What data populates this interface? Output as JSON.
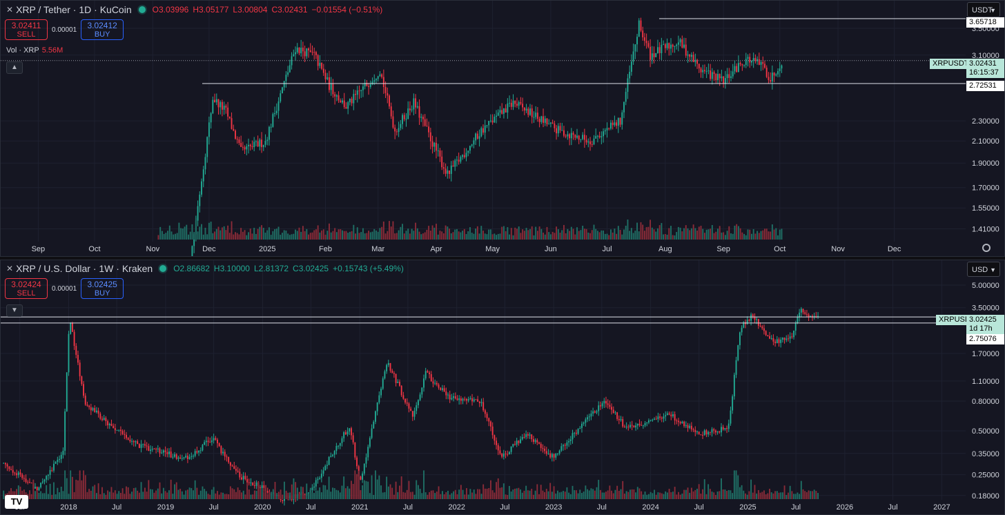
{
  "colors": {
    "up": "#22ab94",
    "down": "#f23645",
    "vol_up": "#1f6f65",
    "vol_down": "#8a2b38",
    "price_tag_bg": "#b8e6d9",
    "axis_text": "#d1d4dc",
    "grid": "#1e2130"
  },
  "top": {
    "symbol": "XRP / Tether · 1D · KuCoin",
    "ohlc": {
      "o": "O3.03996",
      "h": "H3.05177",
      "l": "L3.00804",
      "c": "C3.02431",
      "chg": "−0.01554 (−0.51%)"
    },
    "sell": {
      "price": "3.02411",
      "label": "SELL"
    },
    "spread": "0.00001",
    "buy": {
      "price": "3.02412",
      "label": "BUY"
    },
    "volume": {
      "label": "Vol · XRP",
      "value": "5.56M"
    },
    "collapse_icon": "chevron-up-icon",
    "currency": "USDT",
    "settings_icon": "gear-icon",
    "tags": {
      "high": "3.65718",
      "ticker": "XRPUSDT",
      "price": "3.02431",
      "countdown": "16:15:37",
      "support": "2.72531"
    }
  },
  "bottom": {
    "symbol": "XRP / U.S. Dollar · 1W · Kraken",
    "ohlc": {
      "o": "O2.86682",
      "h": "H3.10000",
      "l": "L2.81372",
      "c": "C3.02425",
      "chg": "+0.15743 (+5.49%)"
    },
    "sell": {
      "price": "3.02424",
      "label": "SELL"
    },
    "spread": "0.00001",
    "buy": {
      "price": "3.02425",
      "label": "BUY"
    },
    "collapse_icon": "chevron-down-icon",
    "currency": "USD",
    "logo": "TV",
    "tags": {
      "ticker": "XRPUSD",
      "price": "3.02425",
      "countdown": "1d 17h",
      "support": "2.75076"
    }
  },
  "chart_data": [
    {
      "type": "candlestick",
      "title": "XRP / Tether · 1D · KuCoin",
      "y_scale": "log",
      "ylim": [
        1.36,
        3.75
      ],
      "y_ticks": [
        "3.50000",
        "3.10000",
        "2.30000",
        "2.10000",
        "1.90000",
        "1.70000",
        "1.55000",
        "1.41000"
      ],
      "y_tick_values": [
        3.5,
        3.1,
        2.3,
        2.1,
        1.9,
        1.7,
        1.55,
        1.41
      ],
      "x_ticks": [
        "Sep",
        "Oct",
        "Nov",
        "Dec",
        "2025",
        "Feb",
        "Mar",
        "Apr",
        "May",
        "Jun",
        "Jul",
        "Aug",
        "Sep",
        "Oct",
        "Nov",
        "Dec"
      ],
      "x_tick_dates": [
        "2024-09-01",
        "2024-10-01",
        "2024-11-01",
        "2024-12-01",
        "2025-01-01",
        "2025-02-01",
        "2025-03-01",
        "2025-04-01",
        "2025-05-01",
        "2025-06-01",
        "2025-07-01",
        "2025-08-01",
        "2025-09-01",
        "2025-10-01",
        "2025-11-01",
        "2025-12-01"
      ],
      "xlim": [
        "2024-08-12",
        "2026-01-08"
      ],
      "hlines": [
        3.65718,
        2.72531,
        3.02431
      ],
      "anchors": {
        "dates": [
          "2024-11-04",
          "2024-11-12",
          "2024-11-22",
          "2024-12-03",
          "2024-12-10",
          "2024-12-18",
          "2024-12-31",
          "2025-01-16",
          "2025-01-26",
          "2025-02-03",
          "2025-02-12",
          "2025-03-02",
          "2025-03-10",
          "2025-03-20",
          "2025-04-07",
          "2025-04-25",
          "2025-05-12",
          "2025-06-05",
          "2025-06-22",
          "2025-07-08",
          "2025-07-18",
          "2025-07-24",
          "2025-08-08",
          "2025-08-20",
          "2025-09-01",
          "2025-09-13",
          "2025-09-22",
          "2025-09-26",
          "2025-10-02"
        ],
        "values": [
          0.55,
          0.8,
          1.3,
          2.55,
          2.4,
          2.0,
          2.1,
          3.2,
          3.1,
          2.7,
          2.45,
          2.9,
          2.2,
          2.5,
          1.8,
          2.2,
          2.5,
          2.2,
          2.1,
          2.3,
          3.55,
          3.1,
          3.3,
          2.9,
          2.75,
          3.05,
          2.95,
          2.78,
          3.02
        ]
      },
      "volume_note": "volume bars along bottom of pane"
    },
    {
      "type": "candlestick",
      "title": "XRP / U.S. Dollar · 1W · Kraken",
      "y_scale": "log",
      "ylim": [
        0.17,
        6.5
      ],
      "y_ticks": [
        "5.00000",
        "3.50000",
        "1.70000",
        "1.10000",
        "0.80000",
        "0.50000",
        "0.35000",
        "0.25000",
        "0.18000"
      ],
      "y_tick_values": [
        5.0,
        3.5,
        1.7,
        1.1,
        0.8,
        0.5,
        0.35,
        0.25,
        0.18
      ],
      "x_ticks": [
        "Jul",
        "2018",
        "Jul",
        "2019",
        "Jul",
        "2020",
        "Jul",
        "2021",
        "Jul",
        "2022",
        "Jul",
        "2023",
        "Jul",
        "2024",
        "Jul",
        "2025",
        "Jul",
        "2026",
        "Jul",
        "2027"
      ],
      "x_tick_dates": [
        "2017-07-01",
        "2018-01-01",
        "2018-07-01",
        "2019-01-01",
        "2019-07-01",
        "2020-01-01",
        "2020-07-01",
        "2021-01-01",
        "2021-07-01",
        "2022-01-01",
        "2022-07-01",
        "2023-01-01",
        "2023-07-01",
        "2024-01-01",
        "2024-07-01",
        "2025-01-01",
        "2025-07-01",
        "2026-01-01",
        "2026-07-01",
        "2027-01-01"
      ],
      "xlim": [
        "2017-04-20",
        "2027-04-01"
      ],
      "hlines": [
        3.02425,
        2.75076
      ],
      "anchors": {
        "dates": [
          "2017-05-01",
          "2017-09-01",
          "2017-12-10",
          "2018-01-04",
          "2018-03-01",
          "2018-06-01",
          "2018-09-20",
          "2019-01-01",
          "2019-04-01",
          "2019-06-25",
          "2019-10-01",
          "2020-03-15",
          "2020-07-01",
          "2020-08-20",
          "2020-11-25",
          "2021-01-01",
          "2021-04-14",
          "2021-07-20",
          "2021-09-06",
          "2021-12-01",
          "2022-03-30",
          "2022-06-18",
          "2022-09-22",
          "2022-12-30",
          "2023-03-30",
          "2023-07-13",
          "2023-10-01",
          "2024-03-11",
          "2024-07-01",
          "2024-10-20",
          "2024-11-18",
          "2024-12-03",
          "2025-01-16",
          "2025-04-07",
          "2025-06-15",
          "2025-07-18",
          "2025-08-20",
          "2025-09-28"
        ],
        "values": [
          0.3,
          0.2,
          0.35,
          3.0,
          0.8,
          0.55,
          0.4,
          0.35,
          0.32,
          0.45,
          0.25,
          0.17,
          0.19,
          0.28,
          0.55,
          0.22,
          1.5,
          0.62,
          1.25,
          0.85,
          0.8,
          0.33,
          0.48,
          0.33,
          0.5,
          0.8,
          0.52,
          0.65,
          0.48,
          0.52,
          1.5,
          2.5,
          3.1,
          2.0,
          2.2,
          3.5,
          3.05,
          3.02
        ]
      },
      "volume_note": "volume bars along bottom of pane"
    }
  ]
}
